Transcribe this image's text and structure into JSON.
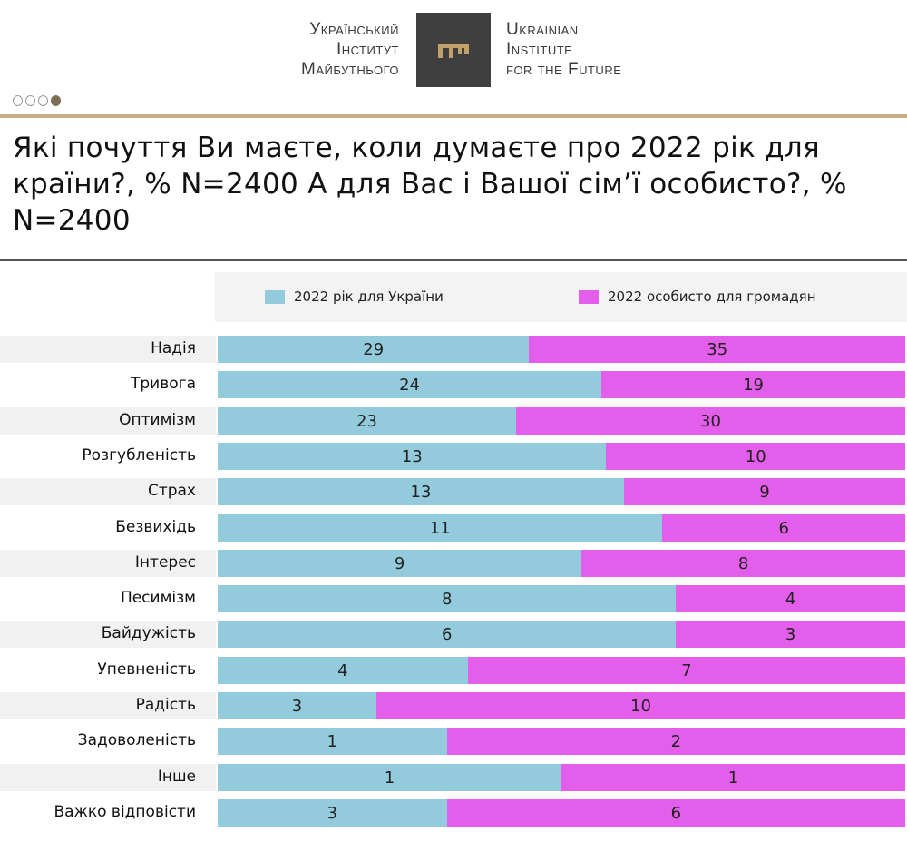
{
  "header": {
    "logo_ua": [
      "Український",
      "Інститут",
      "Майбутнього"
    ],
    "logo_en": [
      "Ukrainian",
      "Institute",
      "for the Future"
    ],
    "slide_dots": 4,
    "active_dot": 4
  },
  "title": "Які почуття Ви маєте, коли думаєте про 2022 рік для країни?, % N=2400  А для Вас і Вашої сім’ї особисто?, % N=2400",
  "colors": {
    "country": "#93cbdd",
    "personal": "#e35eea",
    "accent": "#c8ae84"
  },
  "chart_data": {
    "type": "bar",
    "stacked": "100%",
    "orientation": "horizontal",
    "title": "Які почуття Ви маєте, коли думаєте про 2022 рік для країни?, % N=2400  А для Вас і Вашої сім’ї особисто?, % N=2400",
    "legend_position": "top",
    "categories": [
      "Надія",
      "Тривога",
      "Оптимізм",
      "Розгубленість",
      "Страх",
      "Безвихідь",
      "Інтерес",
      "Песимізм",
      "Байдужість",
      "Упевненість",
      "Радість",
      "Задоволеність",
      "Інше",
      "Важко відповісти"
    ],
    "series": [
      {
        "name": "2022 рік для України",
        "values": [
          29,
          24,
          23,
          13,
          13,
          11,
          9,
          8,
          6,
          4,
          3,
          1,
          1,
          3
        ]
      },
      {
        "name": "2022 особисто для громадян",
        "values": [
          35,
          19,
          30,
          10,
          9,
          6,
          8,
          4,
          3,
          7,
          10,
          2,
          1,
          6
        ]
      }
    ]
  }
}
